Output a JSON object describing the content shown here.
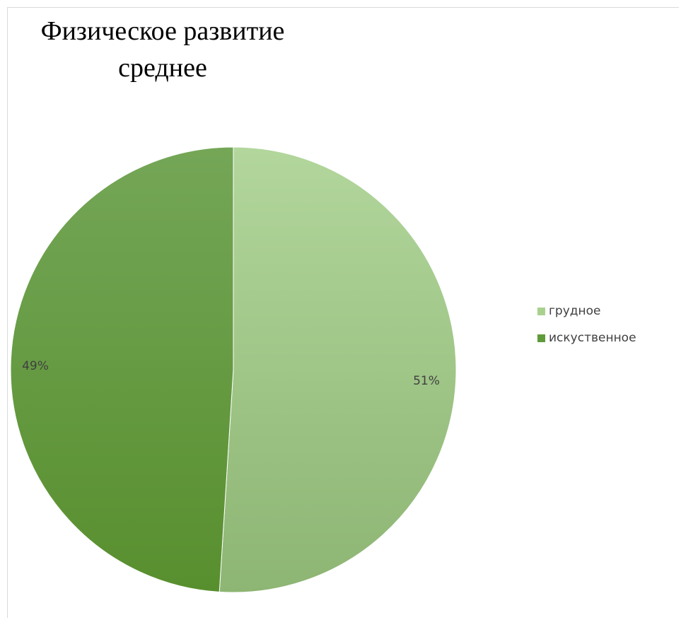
{
  "chart_data": {
    "type": "pie",
    "title_lines": [
      "Физическое развитие",
      "среднее"
    ],
    "slices": [
      {
        "label": "грудное",
        "value": 51,
        "value_label": "51%",
        "color": "#a9d18e"
      },
      {
        "label": "искуственное",
        "value": 49,
        "value_label": "49%",
        "color": "#5f9b3a"
      }
    ],
    "start_angle_deg": 0,
    "direction": "clockwise",
    "legend_position": "right"
  }
}
